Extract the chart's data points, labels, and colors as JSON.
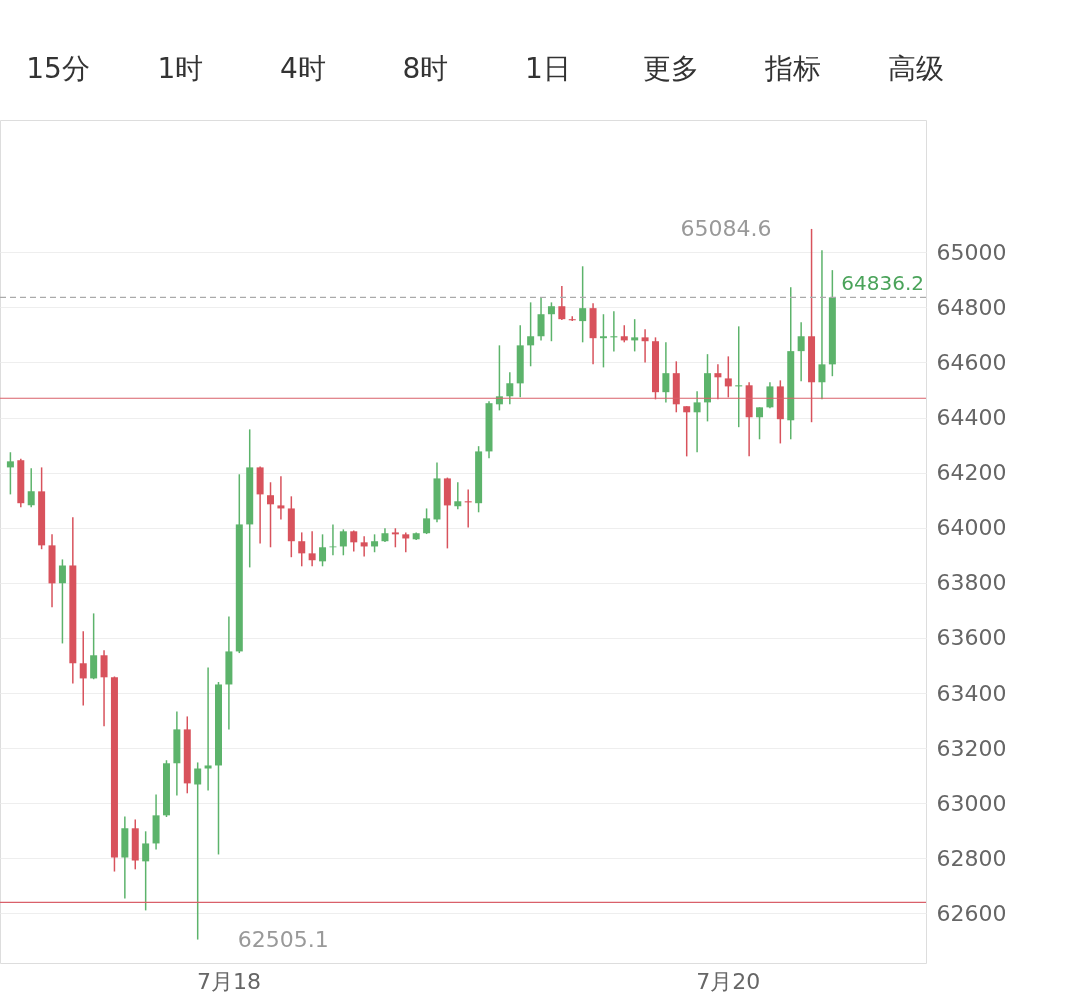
{
  "chart_data": {
    "type": "candlestick",
    "annotations": [
      "15分",
      "1时",
      "4时",
      "8时",
      "1日",
      "更多",
      "指标",
      "高级",
      "65084.6",
      "62505.1"
    ],
    "categories": [
      null,
      null,
      null,
      null,
      null,
      null,
      null,
      null,
      null,
      null,
      null,
      null,
      null,
      null,
      null,
      null,
      null,
      null,
      null,
      null,
      null,
      "7月18",
      null,
      null,
      null,
      null,
      null,
      null,
      null,
      null,
      null,
      null,
      null,
      null,
      null,
      null,
      null,
      null,
      null,
      null,
      null,
      null,
      null,
      null,
      null,
      null,
      null,
      null,
      null,
      null,
      null,
      null,
      null,
      null,
      null,
      null,
      null,
      null,
      null,
      null,
      null,
      null,
      null,
      null,
      null,
      null,
      null,
      null,
      null,
      "7月20",
      null,
      null,
      null,
      null,
      null,
      null,
      null,
      null,
      null,
      null
    ],
    "ohlc": [
      [
        64219,
        64274,
        64121,
        64241
      ],
      [
        64245,
        64250,
        64074,
        64089
      ],
      [
        64082,
        64216,
        64074,
        64132
      ],
      [
        64132,
        64219,
        63922,
        63936
      ],
      [
        63936,
        63976,
        63711,
        63798
      ],
      [
        63798,
        63885,
        63580,
        63863
      ],
      [
        63863,
        64038,
        63435,
        63508
      ],
      [
        63508,
        63624,
        63355,
        63453
      ],
      [
        63453,
        63689,
        63450,
        63537
      ],
      [
        63537,
        63555,
        63279,
        63457
      ],
      [
        63457,
        63460,
        62752,
        62803
      ],
      [
        62803,
        62952,
        62654,
        62909
      ],
      [
        62909,
        62941,
        62760,
        62792
      ],
      [
        62789,
        62898,
        62611,
        62854
      ],
      [
        62854,
        63032,
        62832,
        62956
      ],
      [
        62956,
        63156,
        62950,
        63145
      ],
      [
        63145,
        63333,
        63028,
        63268
      ],
      [
        63268,
        63315,
        63036,
        63072
      ],
      [
        63068,
        63148,
        62505.1,
        63126
      ],
      [
        63126,
        63493,
        63046,
        63137
      ],
      [
        63137,
        63440,
        62814,
        63431
      ],
      [
        63431,
        63678,
        63268,
        63551
      ],
      [
        63551,
        64194,
        63545,
        64012
      ],
      [
        64012,
        64357,
        63856,
        64219
      ],
      [
        64219,
        64222,
        63943,
        64121
      ],
      [
        64118,
        64165,
        63929,
        64085
      ],
      [
        64081,
        64187,
        64030,
        64070
      ],
      [
        64070,
        64114,
        63893,
        63951
      ],
      [
        63951,
        63983,
        63860,
        63907
      ],
      [
        63907,
        63987,
        63860,
        63882
      ],
      [
        63878,
        63976,
        63860,
        63929
      ],
      [
        63929,
        64012,
        63900,
        63932
      ],
      [
        63932,
        63994,
        63900,
        63987
      ],
      [
        63987,
        63990,
        63914,
        63947
      ],
      [
        63947,
        63969,
        63896,
        63932
      ],
      [
        63932,
        63976,
        63911,
        63951
      ],
      [
        63951,
        63998,
        63948,
        63980
      ],
      [
        63983,
        63998,
        63929,
        63976
      ],
      [
        63976,
        63983,
        63911,
        63961
      ],
      [
        63958,
        63983,
        63955,
        63980
      ],
      [
        63980,
        64070,
        63977,
        64034
      ],
      [
        64030,
        64237,
        64020,
        64179
      ],
      [
        64179,
        64182,
        63925,
        64081
      ],
      [
        64078,
        64165,
        64067,
        64096
      ],
      [
        64096,
        64139,
        64001,
        64092
      ],
      [
        64089,
        64296,
        64056,
        64277
      ],
      [
        64277,
        64459,
        64252,
        64452
      ],
      [
        64448,
        64662,
        64426,
        64477
      ],
      [
        64477,
        64564,
        64448,
        64524
      ],
      [
        64524,
        64735,
        64474,
        64662
      ],
      [
        64662,
        64818,
        64586,
        64695
      ],
      [
        64695,
        64837,
        64680,
        64775
      ],
      [
        64775,
        64818,
        64677,
        64804
      ],
      [
        64804,
        64877,
        64754,
        64757
      ],
      [
        64757,
        64768,
        64750,
        64753
      ],
      [
        64750,
        64949,
        64673,
        64797
      ],
      [
        64797,
        64815,
        64593,
        64688
      ],
      [
        64688,
        64775,
        64582,
        64695
      ],
      [
        64691,
        64786,
        64640,
        64695
      ],
      [
        64695,
        64735,
        64673,
        64680
      ],
      [
        64680,
        64757,
        64640,
        64691
      ],
      [
        64691,
        64720,
        64600,
        64677
      ],
      [
        64677,
        64691,
        64466,
        64492
      ],
      [
        64492,
        64673,
        64455,
        64561
      ],
      [
        64561,
        64604,
        64419,
        64448
      ],
      [
        64441,
        64441,
        64259,
        64419
      ],
      [
        64419,
        64495,
        64274,
        64455
      ],
      [
        64455,
        64630,
        64386,
        64561
      ],
      [
        64561,
        64593,
        64466,
        64546
      ],
      [
        64542,
        64622,
        64473,
        64513
      ],
      [
        64513,
        64731,
        64365,
        64517
      ],
      [
        64517,
        64528,
        64259,
        64401
      ],
      [
        64401,
        64437,
        64321,
        64437
      ],
      [
        64437,
        64528,
        64434,
        64513
      ],
      [
        64513,
        64535,
        64306,
        64394
      ],
      [
        64390,
        64873,
        64321,
        64641
      ],
      [
        64641,
        64746,
        64532,
        64695
      ],
      [
        64695,
        65084.6,
        64383,
        64528
      ],
      [
        64528,
        65007,
        64466,
        64593
      ],
      [
        64593,
        64935,
        64550,
        64836.2
      ]
    ],
    "colors": [
      "#5cb36b",
      "#d8525c",
      "#5cb36b",
      "#d8525c",
      "#d8525c",
      "#5cb36b",
      "#d8525c",
      "#d8525c",
      "#5cb36b",
      "#d8525c",
      "#d8525c",
      "#5cb36b",
      "#d8525c",
      "#5cb36b",
      "#5cb36b",
      "#5cb36b",
      "#5cb36b",
      "#d8525c",
      "#5cb36b",
      "#5cb36b",
      "#5cb36b",
      "#5cb36b",
      "#5cb36b",
      "#5cb36b",
      "#d8525c",
      "#d8525c",
      "#d8525c",
      "#d8525c",
      "#d8525c",
      "#d8525c",
      "#5cb36b",
      "#5cb36b",
      "#5cb36b",
      "#d8525c",
      "#d8525c",
      "#5cb36b",
      "#5cb36b",
      "#d8525c",
      "#d8525c",
      "#5cb36b",
      "#5cb36b",
      "#5cb36b",
      "#d8525c",
      "#5cb36b",
      "#d8525c",
      "#5cb36b",
      "#5cb36b",
      "#5cb36b",
      "#5cb36b",
      "#5cb36b",
      "#5cb36b",
      "#5cb36b",
      "#5cb36b",
      "#d8525c",
      "#d8525c",
      "#5cb36b",
      "#d8525c",
      "#5cb36b",
      "#5cb36b",
      "#d8525c",
      "#5cb36b",
      "#d8525c",
      "#d8525c",
      "#5cb36b",
      "#d8525c",
      "#d8525c",
      "#5cb36b",
      "#5cb36b",
      "#d8525c",
      "#d8525c",
      "#5cb36b",
      "#d8525c",
      "#5cb36b",
      "#5cb36b",
      "#d8525c",
      "#5cb36b",
      "#5cb36b",
      "#d8525c",
      "#5cb36b",
      "#5cb36b"
    ],
    "ylim": [
      62420,
      65480
    ],
    "yticks": [
      62600,
      62800,
      63000,
      63200,
      63400,
      63600,
      63800,
      64000,
      64200,
      64400,
      64600,
      64800,
      65000
    ],
    "grid": "y",
    "ref_lines": [
      {
        "axis": "y",
        "value": 64470,
        "color": "#d9606a",
        "line_style": "solid"
      },
      {
        "axis": "y",
        "value": 62640,
        "color": "#d9606a",
        "line_style": "solid"
      },
      {
        "axis": "y",
        "value": 64836.2,
        "label": "64836.2",
        "color": "#aaaaaa",
        "line_style": "dashed"
      }
    ]
  }
}
